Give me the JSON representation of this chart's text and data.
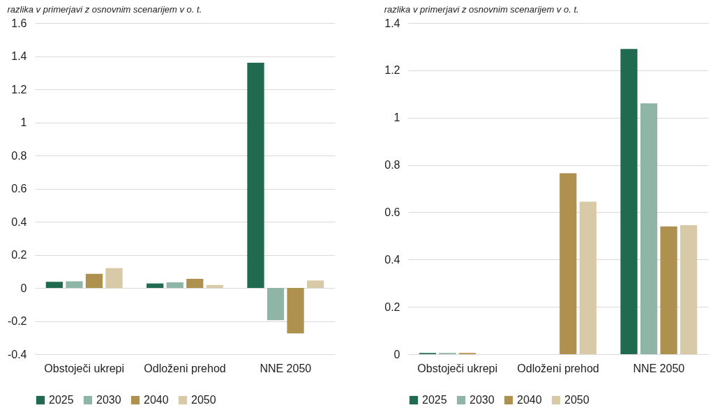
{
  "chart_data": [
    {
      "type": "bar",
      "title": "razlika v primerjavi z osnovnim scenarijem v o. t.",
      "categories": [
        "Obstoječi ukrepi",
        "Odloženi prehod",
        "NNE 2050"
      ],
      "series": [
        {
          "name": "2025",
          "color": "#206a50",
          "values": [
            0.037,
            0.027,
            1.36
          ]
        },
        {
          "name": "2030",
          "color": "#8fb5a6",
          "values": [
            0.04,
            0.034,
            -0.195
          ]
        },
        {
          "name": "2040",
          "color": "#ae904f",
          "values": [
            0.085,
            0.055,
            -0.275
          ]
        },
        {
          "name": "2050",
          "color": "#d8caa7",
          "values": [
            0.12,
            0.018,
            0.045
          ]
        }
      ],
      "ylim": [
        -0.4,
        1.6
      ],
      "yticks": [
        -0.4,
        -0.2,
        0,
        0.2,
        0.4,
        0.6,
        0.8,
        1,
        1.2,
        1.4,
        1.6
      ],
      "grid": "y",
      "legend": "bottom left"
    },
    {
      "type": "bar",
      "title": "razlika v primerjavi z osnovnim scenarijem v o. t.",
      "categories": [
        "Obstoječi ukrepi",
        "Odloženi prehod",
        "NNE 2050"
      ],
      "series": [
        {
          "name": "2025",
          "color": "#206a50",
          "values": [
            0.005,
            null,
            1.29
          ]
        },
        {
          "name": "2030",
          "color": "#8fb5a6",
          "values": [
            0.005,
            null,
            1.06
          ]
        },
        {
          "name": "2040",
          "color": "#ae904f",
          "values": [
            0.005,
            0.765,
            0.54
          ]
        },
        {
          "name": "2050",
          "color": "#d8caa7",
          "values": [
            null,
            0.645,
            0.545
          ]
        }
      ],
      "ylim": [
        0,
        1.4
      ],
      "yticks": [
        0,
        0.2,
        0.4,
        0.6,
        0.8,
        1,
        1.2,
        1.4
      ],
      "grid": "y",
      "legend": "bottom left"
    }
  ]
}
